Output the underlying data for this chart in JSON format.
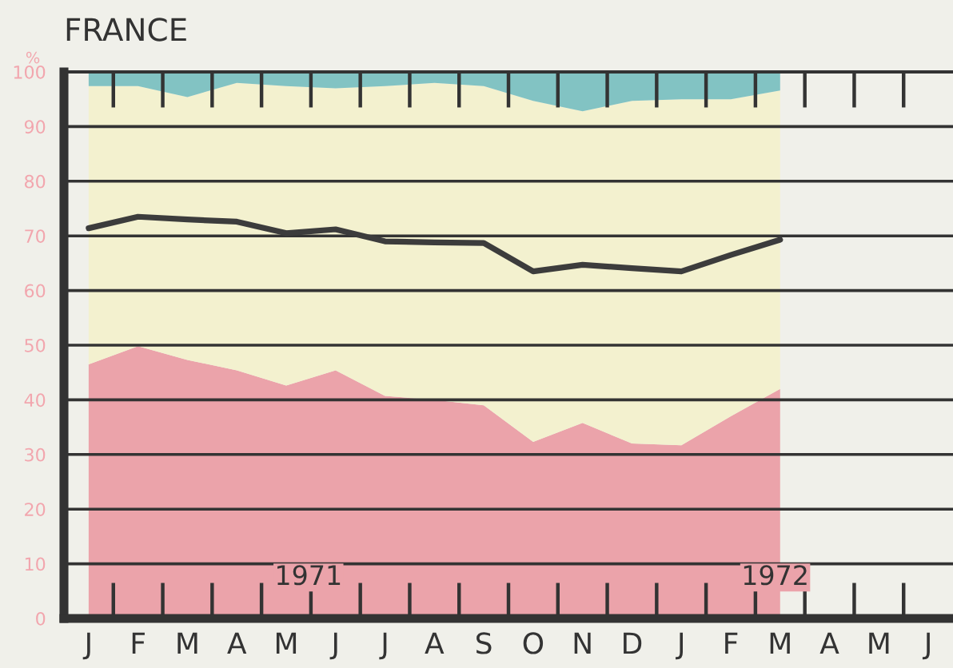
{
  "chart_data": {
    "type": "area",
    "title": "FRANCE",
    "ylabel": "%",
    "stacked": true,
    "grid": "y",
    "categories": [
      "J",
      "F",
      "M",
      "A",
      "M",
      "J",
      "J",
      "A",
      "S",
      "O",
      "N",
      "D",
      "J",
      "F",
      "M",
      "A",
      "M",
      "J"
    ],
    "ylim": [
      0,
      100
    ],
    "yticks": [
      0,
      10,
      20,
      30,
      40,
      50,
      60,
      70,
      80,
      90,
      100
    ],
    "series": [
      {
        "color": "#eba3aa",
        "values": [
          46.5,
          49.8,
          47.3,
          45.4,
          42.6,
          45.4,
          40.7,
          40,
          39,
          32.3,
          35.8,
          32,
          31.7,
          37,
          42,
          null,
          null,
          null
        ]
      },
      {
        "color": "#f3f1cf",
        "values": [
          50.9,
          47.6,
          48.1,
          52.6,
          54.8,
          51.6,
          56.7,
          58,
          58.4,
          62.4,
          57,
          62.7,
          63.3,
          58,
          54.6,
          null,
          null,
          null
        ]
      },
      {
        "color": "#82c3c3",
        "values": [
          2.6,
          2.6,
          4.6,
          2,
          2.6,
          3,
          2.6,
          2,
          2.6,
          5.3,
          7.2,
          5.3,
          5,
          5,
          3.4,
          null,
          null,
          null
        ]
      },
      {
        "type": "line",
        "color": "#3c3c3c",
        "values": [
          71.4,
          73.5,
          73,
          72.6,
          70.5,
          71.2,
          69,
          68.8,
          68.7,
          63.5,
          64.7,
          64.1,
          63.5,
          66.5,
          69.3,
          null,
          null,
          null
        ]
      }
    ],
    "annotations": [
      "1971",
      "1972"
    ]
  }
}
